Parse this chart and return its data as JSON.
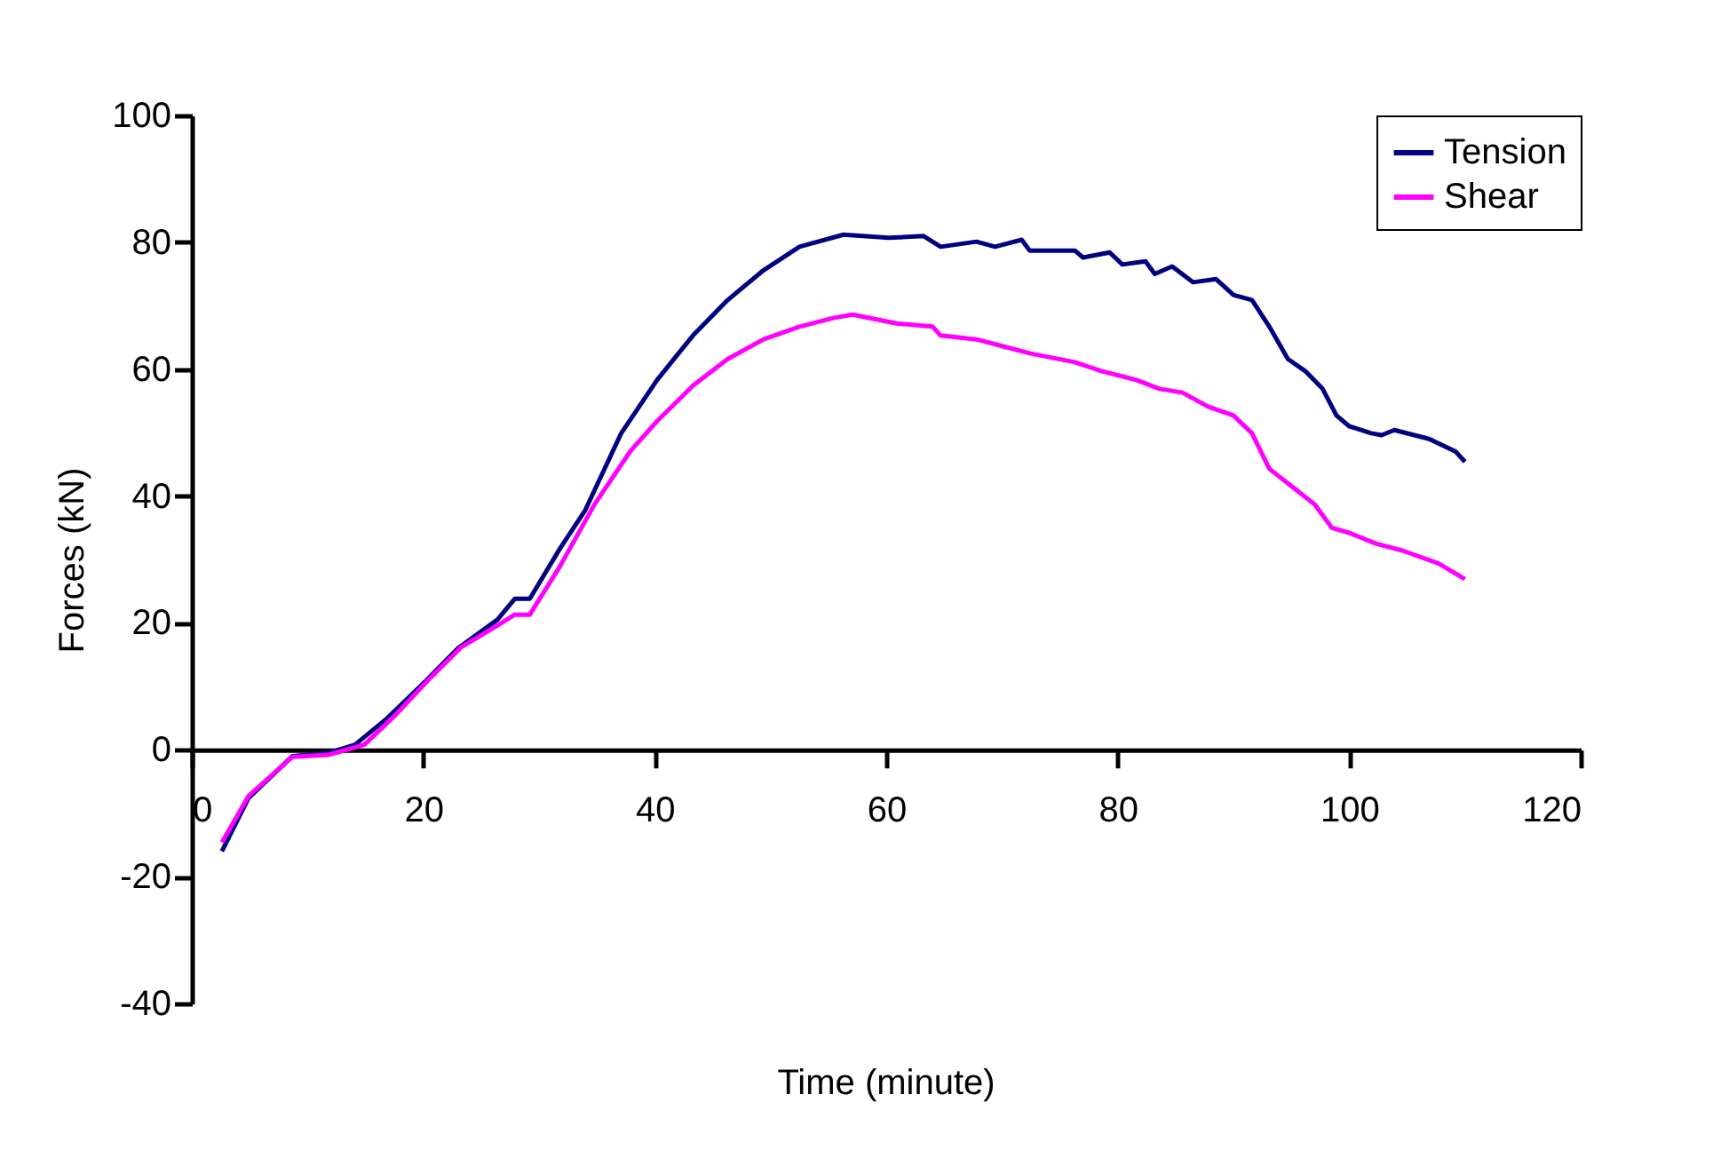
{
  "chart_data": {
    "type": "line",
    "xlabel": "Time (minute)",
    "ylabel": "Forces (kN)",
    "xlim": [
      0,
      120
    ],
    "xticks": [
      0,
      20,
      40,
      60,
      80,
      100,
      120
    ],
    "ylim": [
      -40,
      100
    ],
    "yticks": [
      -40,
      -20,
      0,
      20,
      40,
      60,
      80,
      100
    ],
    "legend": "top right",
    "line_style": "solid",
    "series": [
      {
        "name": "Tension",
        "color": "#000080",
        "x": [
          2.6,
          4.9,
          8.7,
          11.8,
          14.1,
          16.9,
          20.3,
          23,
          26.4,
          27.9,
          29.2,
          31.8,
          34,
          37.1,
          40.2,
          43.3,
          46.3,
          49.4,
          52.5,
          56.3,
          60.2,
          63.2,
          64.7,
          67.8,
          69.4,
          71.7,
          72.4,
          76.3,
          77,
          79.3,
          80.4,
          82.4,
          83.2,
          84.7,
          86.5,
          88.5,
          90,
          91.6,
          93.1,
          94.7,
          96.2,
          97.7,
          98.9,
          100,
          101.9,
          102.8,
          103.9,
          106.9,
          109.2,
          110
        ],
        "values": [
          -16,
          -7.6,
          -1,
          -0.5,
          0.8,
          5,
          11,
          16,
          20.5,
          23.8,
          23.8,
          31.7,
          37.8,
          49.9,
          58.3,
          65.3,
          70.9,
          75.6,
          79.3,
          81.2,
          80.7,
          81,
          79.3,
          80.1,
          79.3,
          80.4,
          78.7,
          78.7,
          77.6,
          78.4,
          76.5,
          77,
          75,
          76.2,
          73.7,
          74.2,
          71.7,
          70.9,
          66.7,
          61.6,
          59.7,
          56.9,
          52.7,
          51,
          49.9,
          49.6,
          50.4,
          49,
          47,
          45.4
        ]
      },
      {
        "name": "Shear",
        "color": "#ff00ff",
        "x": [
          2.6,
          4.9,
          8.7,
          11.8,
          14.9,
          17.5,
          20.7,
          23.3,
          26.4,
          27.9,
          29.2,
          31.8,
          34.8,
          37.9,
          40.2,
          43.3,
          46.3,
          49.4,
          52.5,
          55.5,
          57.1,
          60.9,
          64,
          64.7,
          67.8,
          70.1,
          72.4,
          76.3,
          78.6,
          81.6,
          83.6,
          85.6,
          87.8,
          90,
          91.6,
          93.1,
          94.7,
          97,
          98.5,
          100,
          102.3,
          104.6,
          107.7,
          110
        ],
        "values": [
          -14.6,
          -7.3,
          -1.1,
          -0.8,
          0.8,
          5.3,
          11.5,
          16.2,
          19.6,
          21.3,
          21.3,
          28.9,
          38.7,
          47.1,
          51.8,
          57.4,
          61.6,
          64.7,
          66.7,
          68.1,
          68.6,
          67.2,
          66.7,
          65.3,
          64.7,
          63.6,
          62.5,
          61.1,
          59.7,
          58.3,
          56.9,
          56.3,
          54.1,
          52.7,
          49.9,
          44.3,
          42,
          38.7,
          35,
          34.2,
          32.5,
          31.4,
          29.4,
          26.9
        ]
      }
    ]
  }
}
